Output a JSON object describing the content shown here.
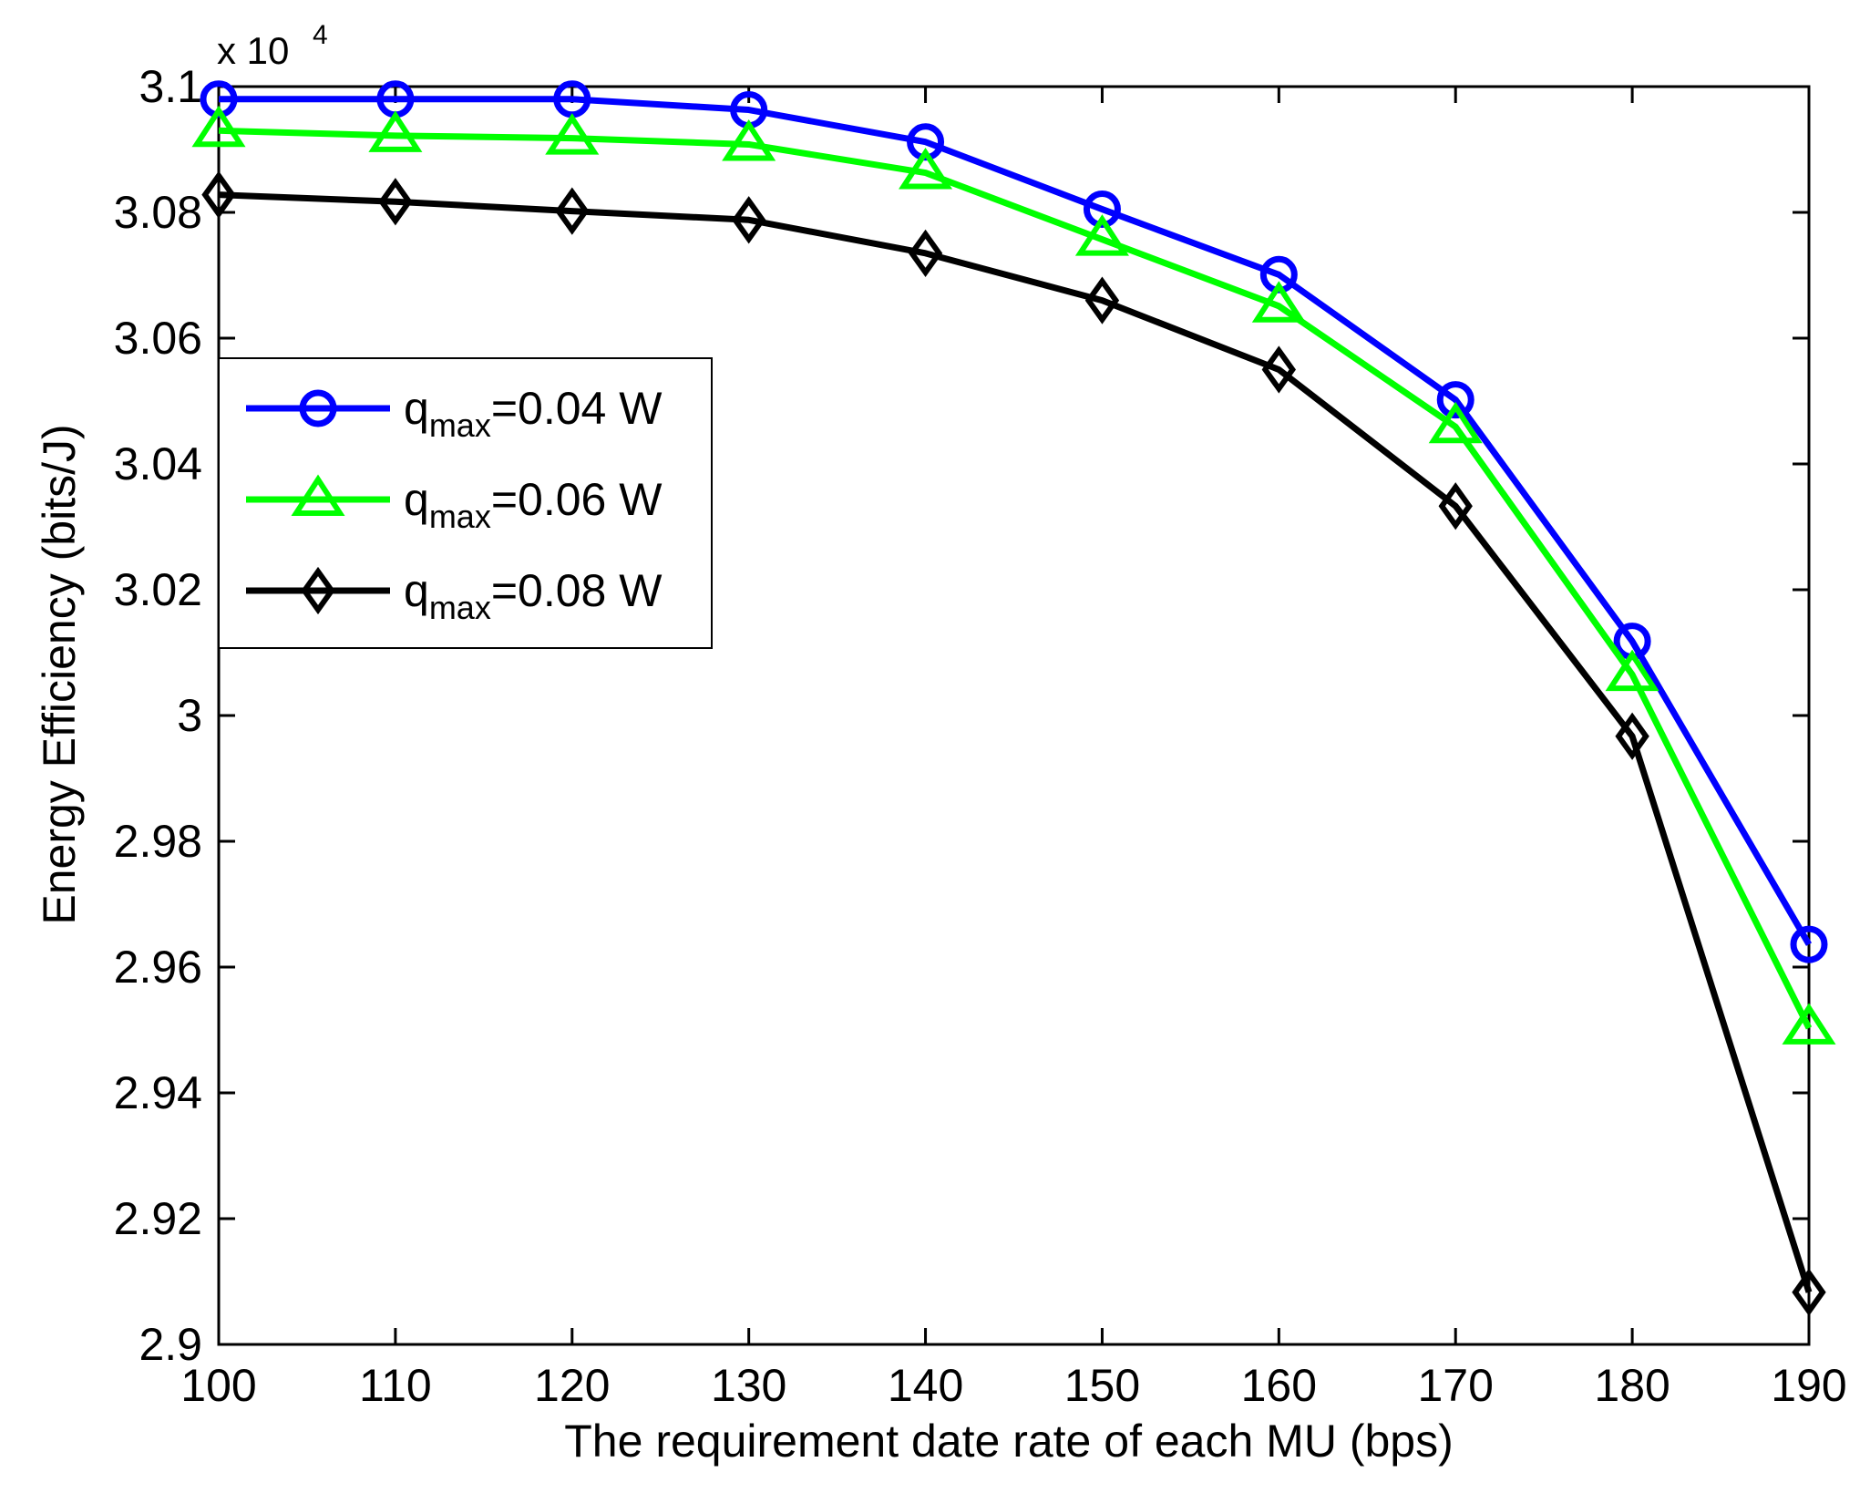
{
  "chart_data": {
    "type": "line",
    "title": "",
    "xlabel": "The requirement date rate of each MU (bps)",
    "ylabel": "Energy  Efficiency (bits/J)",
    "xlim": [
      100,
      190
    ],
    "ylim": [
      2.9,
      3.1
    ],
    "x": [
      100,
      110,
      120,
      130,
      140,
      150,
      160,
      170,
      180,
      190
    ],
    "x_ticks": [
      "100",
      "110",
      "120",
      "130",
      "140",
      "150",
      "160",
      "170",
      "180",
      "190"
    ],
    "y_ticks": [
      "2.9",
      "2.92",
      "2.94",
      "2.96",
      "2.98",
      "3",
      "3.02",
      "3.04",
      "3.06",
      "3.08",
      "3.1"
    ],
    "y_tick_values": [
      2.9,
      2.92,
      2.94,
      2.96,
      2.98,
      3.0,
      3.02,
      3.04,
      3.06,
      3.08,
      3.1
    ],
    "exponent": {
      "base": "x 10",
      "power": "4"
    },
    "grid": false,
    "legend_position": "upper-left",
    "series": [
      {
        "name": "qmax=0.04 W",
        "label_main": "q",
        "label_sub": "max",
        "label_rest": "=0.04 W",
        "color": "#0000ff",
        "marker": "circle",
        "values": [
          3.098,
          3.098,
          3.098,
          3.0963,
          3.0912,
          3.0805,
          3.0701,
          3.0502,
          3.0118,
          2.9636
        ]
      },
      {
        "name": "qmax=0.06 W",
        "label_main": "q",
        "label_sub": "max",
        "label_rest": "=0.06 W",
        "color": "#00ff00",
        "marker": "triangle",
        "values": [
          3.093,
          3.0922,
          3.0918,
          3.0908,
          3.0863,
          3.0757,
          3.0651,
          3.0459,
          3.0065,
          2.9503
        ]
      },
      {
        "name": "qmax=0.08 W",
        "label_main": "q",
        "label_sub": "max",
        "label_rest": "=0.08 W",
        "color": "#000000",
        "marker": "diamond",
        "values": [
          3.0828,
          3.0817,
          3.0802,
          3.0788,
          3.0735,
          3.066,
          3.055,
          3.0333,
          2.9967,
          2.9083
        ]
      }
    ]
  }
}
